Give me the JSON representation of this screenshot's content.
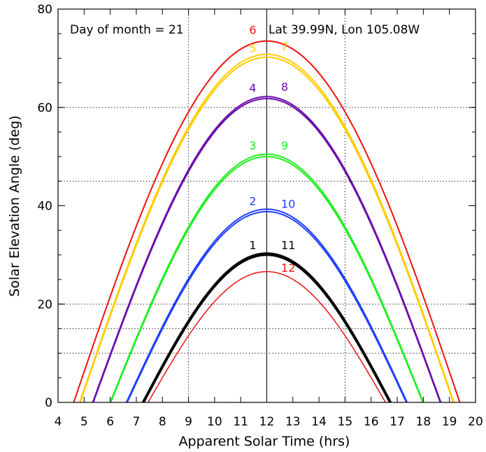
{
  "chart_data": {
    "type": "line",
    "title": "",
    "xlabel": "Apparent Solar Time (hrs)",
    "ylabel": "Solar Elevation Angle (deg)",
    "xlim": [
      4,
      20
    ],
    "ylim": [
      0,
      80
    ],
    "xticks": [
      "4",
      "5",
      "6",
      "7",
      "8",
      "9",
      "10",
      "11",
      "12",
      "13",
      "14",
      "15",
      "16",
      "17",
      "18",
      "19",
      "20"
    ],
    "yticks": [
      "0",
      "20",
      "40",
      "60",
      "80"
    ],
    "grid": {
      "vertical_dotted_x": [
        9,
        15
      ],
      "vertical_solid_x": [
        12
      ],
      "horizontal_dotted_y": [
        10,
        15,
        20,
        45,
        60
      ]
    },
    "annotations": {
      "left": "Day of month = 21",
      "right": "Lat 39.99N, Lon 105.08W"
    },
    "series": [
      {
        "name": "1",
        "color": "#000000",
        "noon_elevation": 30.3,
        "sunrise": 7.25,
        "sunset": 16.75,
        "width": 3
      },
      {
        "name": "2",
        "color": "#1f3fff",
        "noon_elevation": 39.3,
        "sunrise": 6.62,
        "sunset": 17.38,
        "width": 2
      },
      {
        "name": "3",
        "color": "#22ee22",
        "noon_elevation": 50.5,
        "sunrise": 6.0,
        "sunset": 18.0,
        "width": 2
      },
      {
        "name": "4",
        "color": "#6a0dad",
        "noon_elevation": 62.2,
        "sunrise": 5.33,
        "sunset": 18.67,
        "width": 2
      },
      {
        "name": "5",
        "color": "#ffcc00",
        "noon_elevation": 70.8,
        "sunrise": 4.83,
        "sunset": 19.17,
        "width": 2
      },
      {
        "name": "6",
        "color": "#ee1111",
        "noon_elevation": 73.5,
        "sunrise": 4.6,
        "sunset": 19.4,
        "width": 2
      },
      {
        "name": "7",
        "color": "#ffcc00",
        "noon_elevation": 70.2,
        "sunrise": 4.85,
        "sunset": 19.15,
        "width": 2
      },
      {
        "name": "8",
        "color": "#6a0dad",
        "noon_elevation": 61.8,
        "sunrise": 5.35,
        "sunset": 18.65,
        "width": 2
      },
      {
        "name": "9",
        "color": "#22ee22",
        "noon_elevation": 50.0,
        "sunrise": 6.02,
        "sunset": 17.98,
        "width": 2
      },
      {
        "name": "10",
        "color": "#1f3fff",
        "noon_elevation": 38.8,
        "sunrise": 6.65,
        "sunset": 17.35,
        "width": 2
      },
      {
        "name": "11",
        "color": "#000000",
        "noon_elevation": 30.0,
        "sunrise": 7.28,
        "sunset": 16.72,
        "width": 3
      },
      {
        "name": "12",
        "color": "#ee1111",
        "noon_elevation": 26.6,
        "sunrise": 7.45,
        "sunset": 16.55,
        "width": 1.5
      }
    ],
    "month_labels": [
      {
        "text": "1",
        "x": 11.6,
        "y": 30.6,
        "color": "#000000"
      },
      {
        "text": "11",
        "x": 12.55,
        "y": 30.6,
        "color": "#000000"
      },
      {
        "text": "2",
        "x": 11.6,
        "y": 39.6,
        "color": "#1f3fff"
      },
      {
        "text": "10",
        "x": 12.55,
        "y": 39.0,
        "color": "#1f3fff"
      },
      {
        "text": "3",
        "x": 11.6,
        "y": 50.9,
        "color": "#22ee22"
      },
      {
        "text": "9",
        "x": 12.55,
        "y": 50.9,
        "color": "#22ee22"
      },
      {
        "text": "4",
        "x": 11.6,
        "y": 62.6,
        "color": "#6a0dad"
      },
      {
        "text": "8",
        "x": 12.55,
        "y": 62.8,
        "color": "#6a0dad"
      },
      {
        "text": "5",
        "x": 11.6,
        "y": 70.7,
        "color": "#ffcc00"
      },
      {
        "text": "7",
        "x": 12.55,
        "y": 71.0,
        "color": "#ffcc00"
      },
      {
        "text": "6",
        "x": 11.6,
        "y": 74.4,
        "color": "#ee1111"
      },
      {
        "text": "12",
        "x": 12.55,
        "y": 26.0,
        "color": "#ee1111"
      }
    ]
  }
}
